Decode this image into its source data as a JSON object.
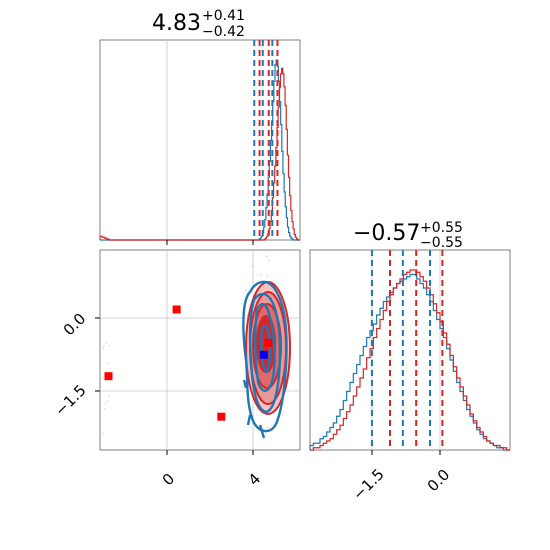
{
  "chart_data": {
    "type": "corner",
    "parameters": [
      "p0",
      "p1"
    ],
    "colors": {
      "series_a": "#1f77b4",
      "series_b": "#d62728",
      "marker_red": "#ff0000",
      "marker_blue": "#0000ff"
    },
    "titles": [
      {
        "value": "4.83",
        "plus": "+0.41",
        "minus": "−0.42"
      },
      {
        "value": "−0.57",
        "plus": "+0.55",
        "minus": "−0.55"
      }
    ],
    "ranges": {
      "p0": [
        -3.1,
        6.3
      ],
      "p1": [
        -2.8,
        1.4
      ]
    },
    "ticks": {
      "p0": {
        "values": [
          0,
          4
        ],
        "labels": [
          "0",
          "4"
        ]
      },
      "p1": {
        "values": [
          -1.5,
          0.0
        ],
        "labels": [
          "−1.5",
          "0.0"
        ]
      }
    },
    "quantile_lines": {
      "series_a_p0": [
        4.15,
        4.55,
        5.0
      ],
      "series_b_p0": [
        4.4,
        4.83,
        5.24
      ],
      "series_a_p1": [
        -1.5,
        -0.85,
        -0.28
      ],
      "series_b_p1": [
        -1.12,
        -0.57,
        -0.02
      ]
    },
    "markers_red": [
      {
        "x": 0.5,
        "y": 0.15
      },
      {
        "x": -2.7,
        "y": -1.25
      },
      {
        "x": 2.6,
        "y": -2.1
      },
      {
        "x": 4.8,
        "y": -0.55
      }
    ],
    "marker_blue": {
      "x": 4.6,
      "y": -0.8
    },
    "hist_p0_a": [
      0,
      0,
      0,
      0,
      0,
      0,
      0,
      0,
      0,
      0,
      0,
      0,
      0,
      0,
      0,
      0,
      0,
      0,
      0,
      0,
      0,
      0,
      0,
      0,
      0,
      0,
      0,
      0,
      0,
      0,
      0,
      0,
      0,
      0,
      0,
      0,
      0,
      0,
      0,
      0,
      0,
      0,
      0,
      0,
      0,
      0,
      0,
      0,
      0,
      0,
      0,
      0,
      0,
      0,
      0,
      0,
      0,
      0,
      0,
      0,
      0,
      0,
      0,
      0,
      0,
      0,
      0,
      0,
      0,
      0,
      0,
      0,
      0,
      0,
      0,
      0,
      0,
      0,
      0,
      0,
      0,
      0,
      0,
      0,
      0,
      0,
      0,
      0,
      0,
      0,
      0,
      0,
      0,
      0,
      0,
      0,
      0,
      0,
      0,
      0,
      0,
      0,
      0,
      0,
      0,
      0,
      0,
      0,
      0,
      0,
      0,
      0,
      0,
      0,
      0,
      0,
      0,
      0,
      0,
      0,
      0,
      0,
      0,
      0,
      0,
      0,
      0,
      0,
      0,
      0,
      0,
      0,
      0,
      0,
      0,
      0,
      0,
      0,
      0,
      0,
      1,
      2,
      4,
      8,
      14,
      22,
      35,
      50,
      68,
      85,
      108,
      128,
      150,
      172,
      190,
      195,
      188,
      172,
      150,
      125,
      96,
      72,
      52,
      36,
      24,
      14,
      8,
      4,
      2,
      1,
      0,
      0,
      0,
      0,
      0,
      0
    ],
    "hist_p0_b": [
      4,
      4,
      3,
      3,
      2,
      2,
      1,
      1,
      0,
      0,
      0,
      0,
      0,
      0,
      0,
      0,
      0,
      0,
      0,
      0,
      0,
      0,
      0,
      0,
      0,
      0,
      0,
      0,
      0,
      0,
      0,
      0,
      0,
      0,
      0,
      0,
      0,
      0,
      0,
      0,
      0,
      0,
      0,
      0,
      0,
      0,
      0,
      0,
      0,
      0,
      0,
      0,
      0,
      0,
      0,
      0,
      0,
      0,
      0,
      0,
      0,
      0,
      0,
      0,
      0,
      0,
      0,
      0,
      0,
      0,
      0,
      0,
      0,
      0,
      0,
      0,
      0,
      0,
      0,
      0,
      0,
      0,
      0,
      0,
      0,
      0,
      0,
      0,
      0,
      0,
      0,
      0,
      0,
      0,
      0,
      0,
      0,
      0,
      0,
      0,
      0,
      0,
      0,
      0,
      0,
      0,
      0,
      0,
      0,
      0,
      0,
      0,
      0,
      0,
      0,
      0,
      0,
      0,
      0,
      0,
      0,
      0,
      0,
      0,
      0,
      0,
      0,
      0,
      0,
      0,
      0,
      0,
      0,
      0,
      0,
      0,
      0,
      0,
      0,
      0,
      0,
      0,
      0,
      1,
      2,
      4,
      7,
      12,
      20,
      32,
      46,
      62,
      80,
      100,
      122,
      144,
      165,
      180,
      186,
      180,
      166,
      146,
      120,
      92,
      68,
      48,
      32,
      20,
      12,
      6,
      3,
      1,
      0,
      0
    ],
    "hist_p1_a": [
      2,
      3,
      3,
      5,
      6,
      8,
      10,
      12,
      15,
      18,
      22,
      26,
      30,
      34,
      38,
      42,
      46,
      50,
      53,
      56,
      60,
      63,
      66,
      68,
      70,
      72,
      74,
      75,
      76,
      77,
      78,
      78,
      76,
      74,
      72,
      69,
      66,
      62,
      58,
      54,
      50,
      45,
      40,
      35,
      30,
      26,
      22,
      18,
      15,
      12,
      9,
      7,
      5,
      4,
      3,
      2,
      1,
      1,
      0,
      0
    ],
    "hist_p1_b": [
      0,
      1,
      1,
      2,
      3,
      4,
      5,
      7,
      9,
      11,
      14,
      17,
      20,
      24,
      28,
      32,
      36,
      41,
      45,
      50,
      54,
      58,
      62,
      66,
      69,
      72,
      74,
      76,
      78,
      79,
      80,
      80,
      79,
      77,
      75,
      72,
      69,
      65,
      61,
      57,
      52,
      47,
      42,
      37,
      32,
      28,
      24,
      20,
      16,
      13,
      10,
      8,
      6,
      4,
      3,
      2,
      2,
      1,
      1,
      0
    ]
  }
}
